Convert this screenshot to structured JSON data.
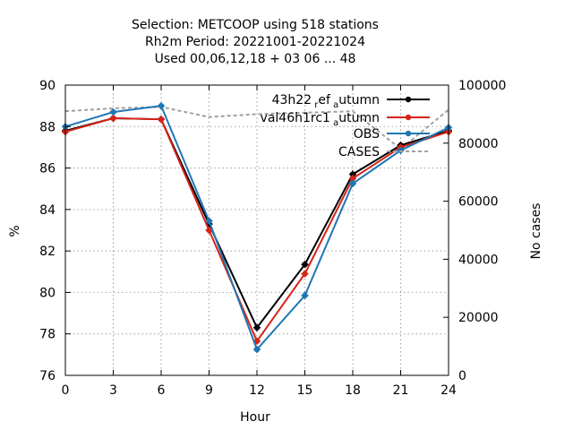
{
  "title_lines": [
    "Selection: METCOOP using   518 stations",
    "Rh2m   Period: 20221001-20221024",
    "Used  00,06,12,18  + 03 06 ... 48"
  ],
  "chart_data": {
    "type": "line",
    "xlabel": "Hour",
    "ylabel": "%",
    "y2label": "No cases",
    "x": [
      0,
      3,
      6,
      9,
      12,
      15,
      18,
      21,
      24
    ],
    "xlim": [
      0,
      24
    ],
    "ylim": [
      76,
      90
    ],
    "y2lim": [
      0,
      100000
    ],
    "x_ticks": [
      0,
      3,
      6,
      9,
      12,
      15,
      18,
      21,
      24
    ],
    "y_ticks": [
      76,
      78,
      80,
      82,
      84,
      86,
      88,
      90
    ],
    "y2_ticks": [
      0,
      20000,
      40000,
      60000,
      80000,
      100000
    ],
    "grid": true,
    "legend_position": "top-right",
    "series": [
      {
        "name": "43h22_ref_autumn",
        "legend_parts": [
          "43h22",
          "r",
          "ef",
          "a",
          "utumn"
        ],
        "color": "#000000",
        "values": [
          87.8,
          88.4,
          88.35,
          83.3,
          78.3,
          81.35,
          85.7,
          87.1,
          87.8
        ]
      },
      {
        "name": "val46h1rc1_autumn",
        "legend_parts": [
          "val46h1rc1",
          "",
          "",
          "a",
          "utumn"
        ],
        "color": "#d62418",
        "values": [
          87.75,
          88.4,
          88.35,
          83.0,
          77.65,
          80.9,
          85.5,
          87.0,
          87.75
        ]
      },
      {
        "name": "OBS",
        "legend_parts": [
          "OBS",
          "",
          "",
          "",
          ""
        ],
        "color": "#1f77b4",
        "values": [
          88.0,
          88.7,
          89.0,
          83.45,
          77.25,
          79.85,
          85.25,
          86.85,
          87.95
        ]
      }
    ],
    "cases_series": {
      "name": "CASES",
      "color": "#a0a0a0",
      "axis": "y2",
      "values": [
        91000,
        92000,
        92500,
        89000,
        90000,
        90500,
        91000,
        78000,
        91500
      ]
    }
  }
}
